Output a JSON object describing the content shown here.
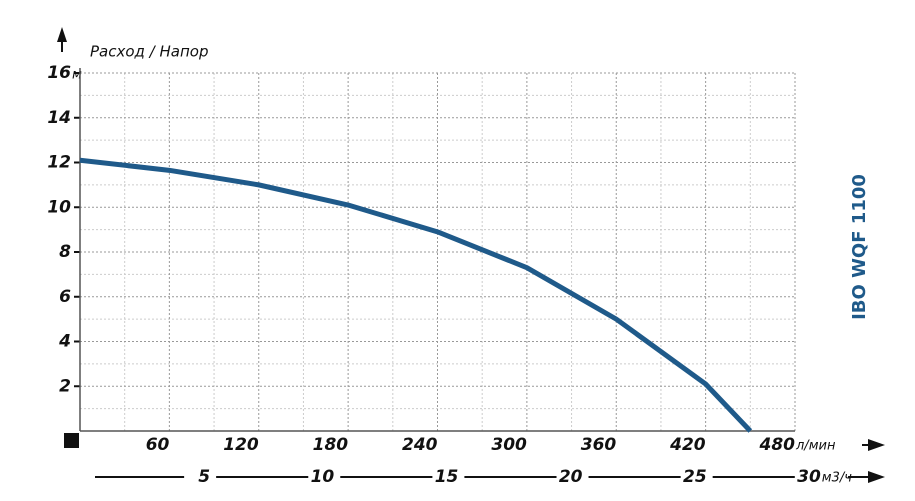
{
  "chart_data": {
    "type": "line",
    "title": "IBO WQF 1100",
    "y_label": "Расход / Напор",
    "y_unit": "м",
    "x_unit": "л/мин",
    "x2_unit": "м3/ч",
    "x": [
      0,
      60,
      120,
      180,
      240,
      300,
      360,
      420,
      450
    ],
    "series": [
      {
        "name": "IBO WQF 1100",
        "color": "#1f5a8a",
        "values": [
          12.1,
          11.65,
          11.0,
          10.1,
          8.9,
          7.3,
          5.0,
          2.1,
          0
        ]
      }
    ],
    "xlim": [
      0,
      480
    ],
    "xticks": [
      60,
      120,
      180,
      240,
      300,
      360,
      420,
      480
    ],
    "xminorticks": [
      30,
      90,
      150,
      210,
      270,
      330,
      390,
      450
    ],
    "x2lim": [
      0,
      28.8
    ],
    "x2ticks": [
      5,
      10,
      15,
      20,
      25,
      30
    ],
    "ylim": [
      0,
      16
    ],
    "yticks": [
      2,
      4,
      6,
      8,
      10,
      12,
      14,
      16
    ],
    "yminorticks": [
      1,
      3,
      5,
      7,
      9,
      11,
      13,
      15
    ],
    "grid": true
  }
}
